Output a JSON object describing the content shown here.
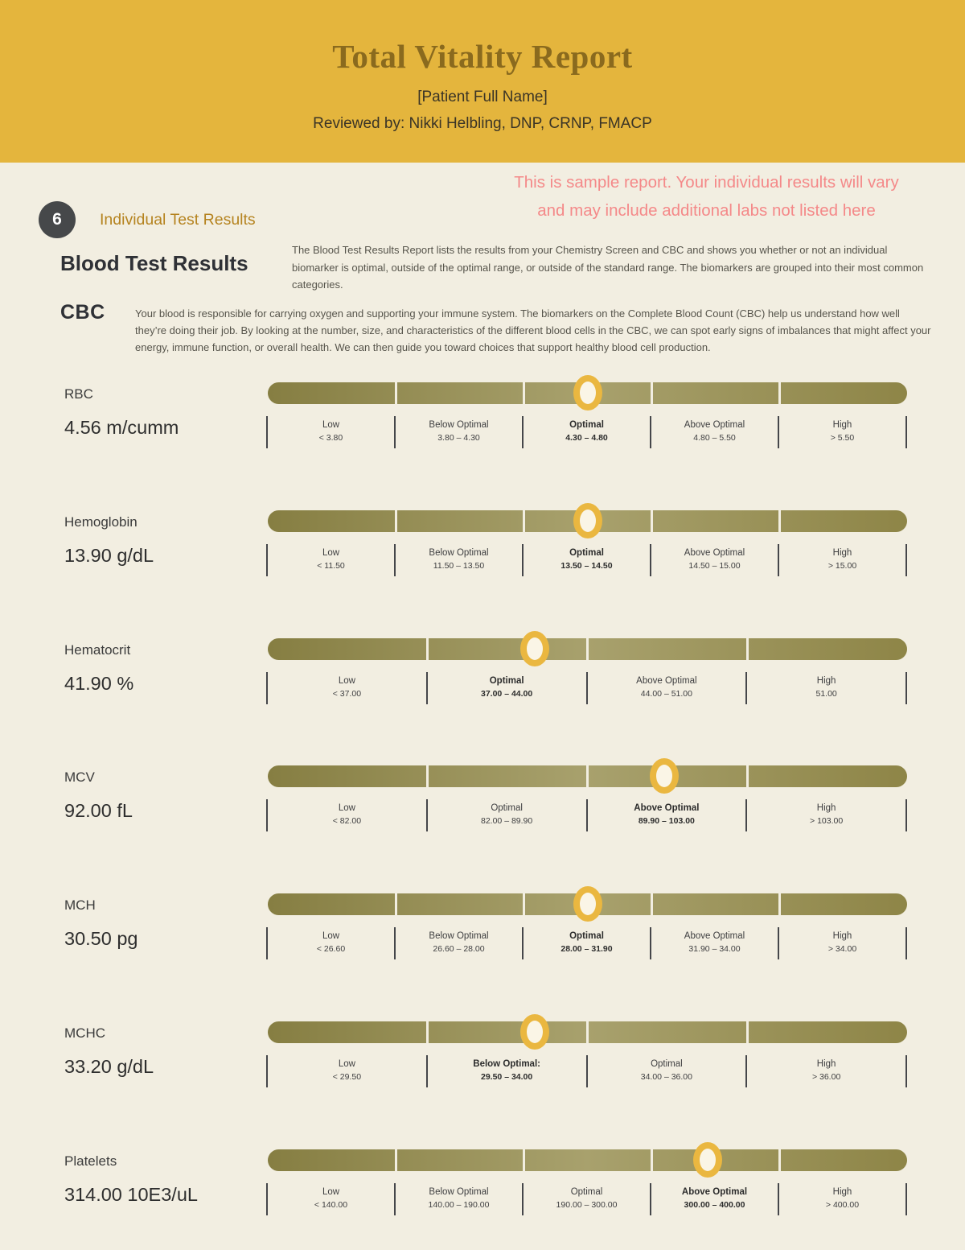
{
  "colors": {
    "page_bg": "#f2eee1",
    "header_bg": "#e4b53d",
    "title_text": "#8a6a1e",
    "disclaimer_pink": "#f48989",
    "badge_bg": "#46484a",
    "section_label": "#b5831f",
    "bar_dark": "#867e42",
    "bar_light": "#a8a16d",
    "marker_ring": "#eab740",
    "marker_fill": "#faf5e6"
  },
  "header": {
    "title": "Total Vitality Report",
    "patient": "[Patient Full Name]",
    "reviewed_by": "Reviewed by: Nikki Helbling, DNP, CRNP, FMACP"
  },
  "disclaimer": {
    "line1": "This is sample report. Your individual results will vary",
    "line2": "and may include additional labs not listed here"
  },
  "section": {
    "number": "6",
    "label": "Individual Test Results"
  },
  "intro": {
    "heading": "Blood Test Results",
    "text": "The Blood Test Results Report lists the results from your Chemistry Screen and CBC and shows you whether or not an individual biomarker is optimal, outside of the optimal range, or outside of the standard range. The biomarkers are grouped into their most common categories."
  },
  "cbc": {
    "heading": "CBC",
    "text": "Your blood is responsible for carrying oxygen and supporting your immune system. The biomarkers on the Complete Blood Count (CBC) help us understand how well they’re doing their job. By looking at the number, size, and characteristics of the different blood cells in the CBC, we can spot early signs of imbalances that might affect your energy, immune function, or overall health. We can then guide you toward choices that support healthy blood cell production."
  },
  "biomarkers": [
    {
      "name": "RBC",
      "value": "4.56 m/cumm",
      "marker_pct": 50,
      "categories": [
        {
          "label": "Low",
          "range": "< 3.80",
          "active": false
        },
        {
          "label": "Below Optimal",
          "range": "3.80 – 4.30",
          "active": false
        },
        {
          "label": "Optimal",
          "range": "4.30 – 4.80",
          "active": true
        },
        {
          "label": "Above Optimal",
          "range": "4.80 – 5.50",
          "active": false
        },
        {
          "label": "High",
          "range": "> 5.50",
          "active": false
        }
      ]
    },
    {
      "name": "Hemoglobin",
      "value": "13.90 g/dL",
      "marker_pct": 50,
      "categories": [
        {
          "label": "Low",
          "range": "< 11.50",
          "active": false
        },
        {
          "label": "Below Optimal",
          "range": "11.50 – 13.50",
          "active": false
        },
        {
          "label": "Optimal",
          "range": "13.50 – 14.50",
          "active": true
        },
        {
          "label": "Above Optimal",
          "range": "14.50 – 15.00",
          "active": false
        },
        {
          "label": "High",
          "range": "> 15.00",
          "active": false
        }
      ]
    },
    {
      "name": "Hematocrit",
      "value": "41.90 %",
      "marker_pct": 41.8,
      "categories": [
        {
          "label": "Low",
          "range": "< 37.00",
          "active": false
        },
        {
          "label": "Optimal",
          "range": "37.00 – 44.00",
          "active": true
        },
        {
          "label": "Above Optimal",
          "range": "44.00 – 51.00",
          "active": false
        },
        {
          "label": "High",
          "range": "51.00",
          "active": false
        }
      ]
    },
    {
      "name": "MCV",
      "value": "92.00 fL",
      "marker_pct": 62,
      "categories": [
        {
          "label": "Low",
          "range": "< 82.00",
          "active": false
        },
        {
          "label": "Optimal",
          "range": "82.00 – 89.90",
          "active": false
        },
        {
          "label": "Above Optimal",
          "range": "89.90 – 103.00",
          "active": true
        },
        {
          "label": "High",
          "range": "> 103.00",
          "active": false
        }
      ]
    },
    {
      "name": "MCH",
      "value": "30.50 pg",
      "marker_pct": 50,
      "categories": [
        {
          "label": "Low",
          "range": "< 26.60",
          "active": false
        },
        {
          "label": "Below Optimal",
          "range": "26.60 – 28.00",
          "active": false
        },
        {
          "label": "Optimal",
          "range": "28.00 – 31.90",
          "active": true
        },
        {
          "label": "Above Optimal",
          "range": "31.90 – 34.00",
          "active": false
        },
        {
          "label": "High",
          "range": "> 34.00",
          "active": false
        }
      ]
    },
    {
      "name": "MCHC",
      "value": "33.20 g/dL",
      "marker_pct": 41.8,
      "categories": [
        {
          "label": "Low",
          "range": "< 29.50",
          "active": false
        },
        {
          "label": "Below Optimal:",
          "range": "29.50 – 34.00",
          "active": true
        },
        {
          "label": "Optimal",
          "range": "34.00 – 36.00",
          "active": false
        },
        {
          "label": "High",
          "range": "> 36.00",
          "active": false
        }
      ]
    },
    {
      "name": "Platelets",
      "value": "314.00 10E3/uL",
      "marker_pct": 68.8,
      "categories": [
        {
          "label": "Low",
          "range": "< 140.00",
          "active": false
        },
        {
          "label": "Below Optimal",
          "range": "140.00 – 190.00",
          "active": false
        },
        {
          "label": "Optimal",
          "range": "190.00 – 300.00",
          "active": false
        },
        {
          "label": "Above Optimal",
          "range": "300.00 – 400.00",
          "active": true
        },
        {
          "label": "High",
          "range": "> 400.00",
          "active": false
        }
      ]
    }
  ]
}
